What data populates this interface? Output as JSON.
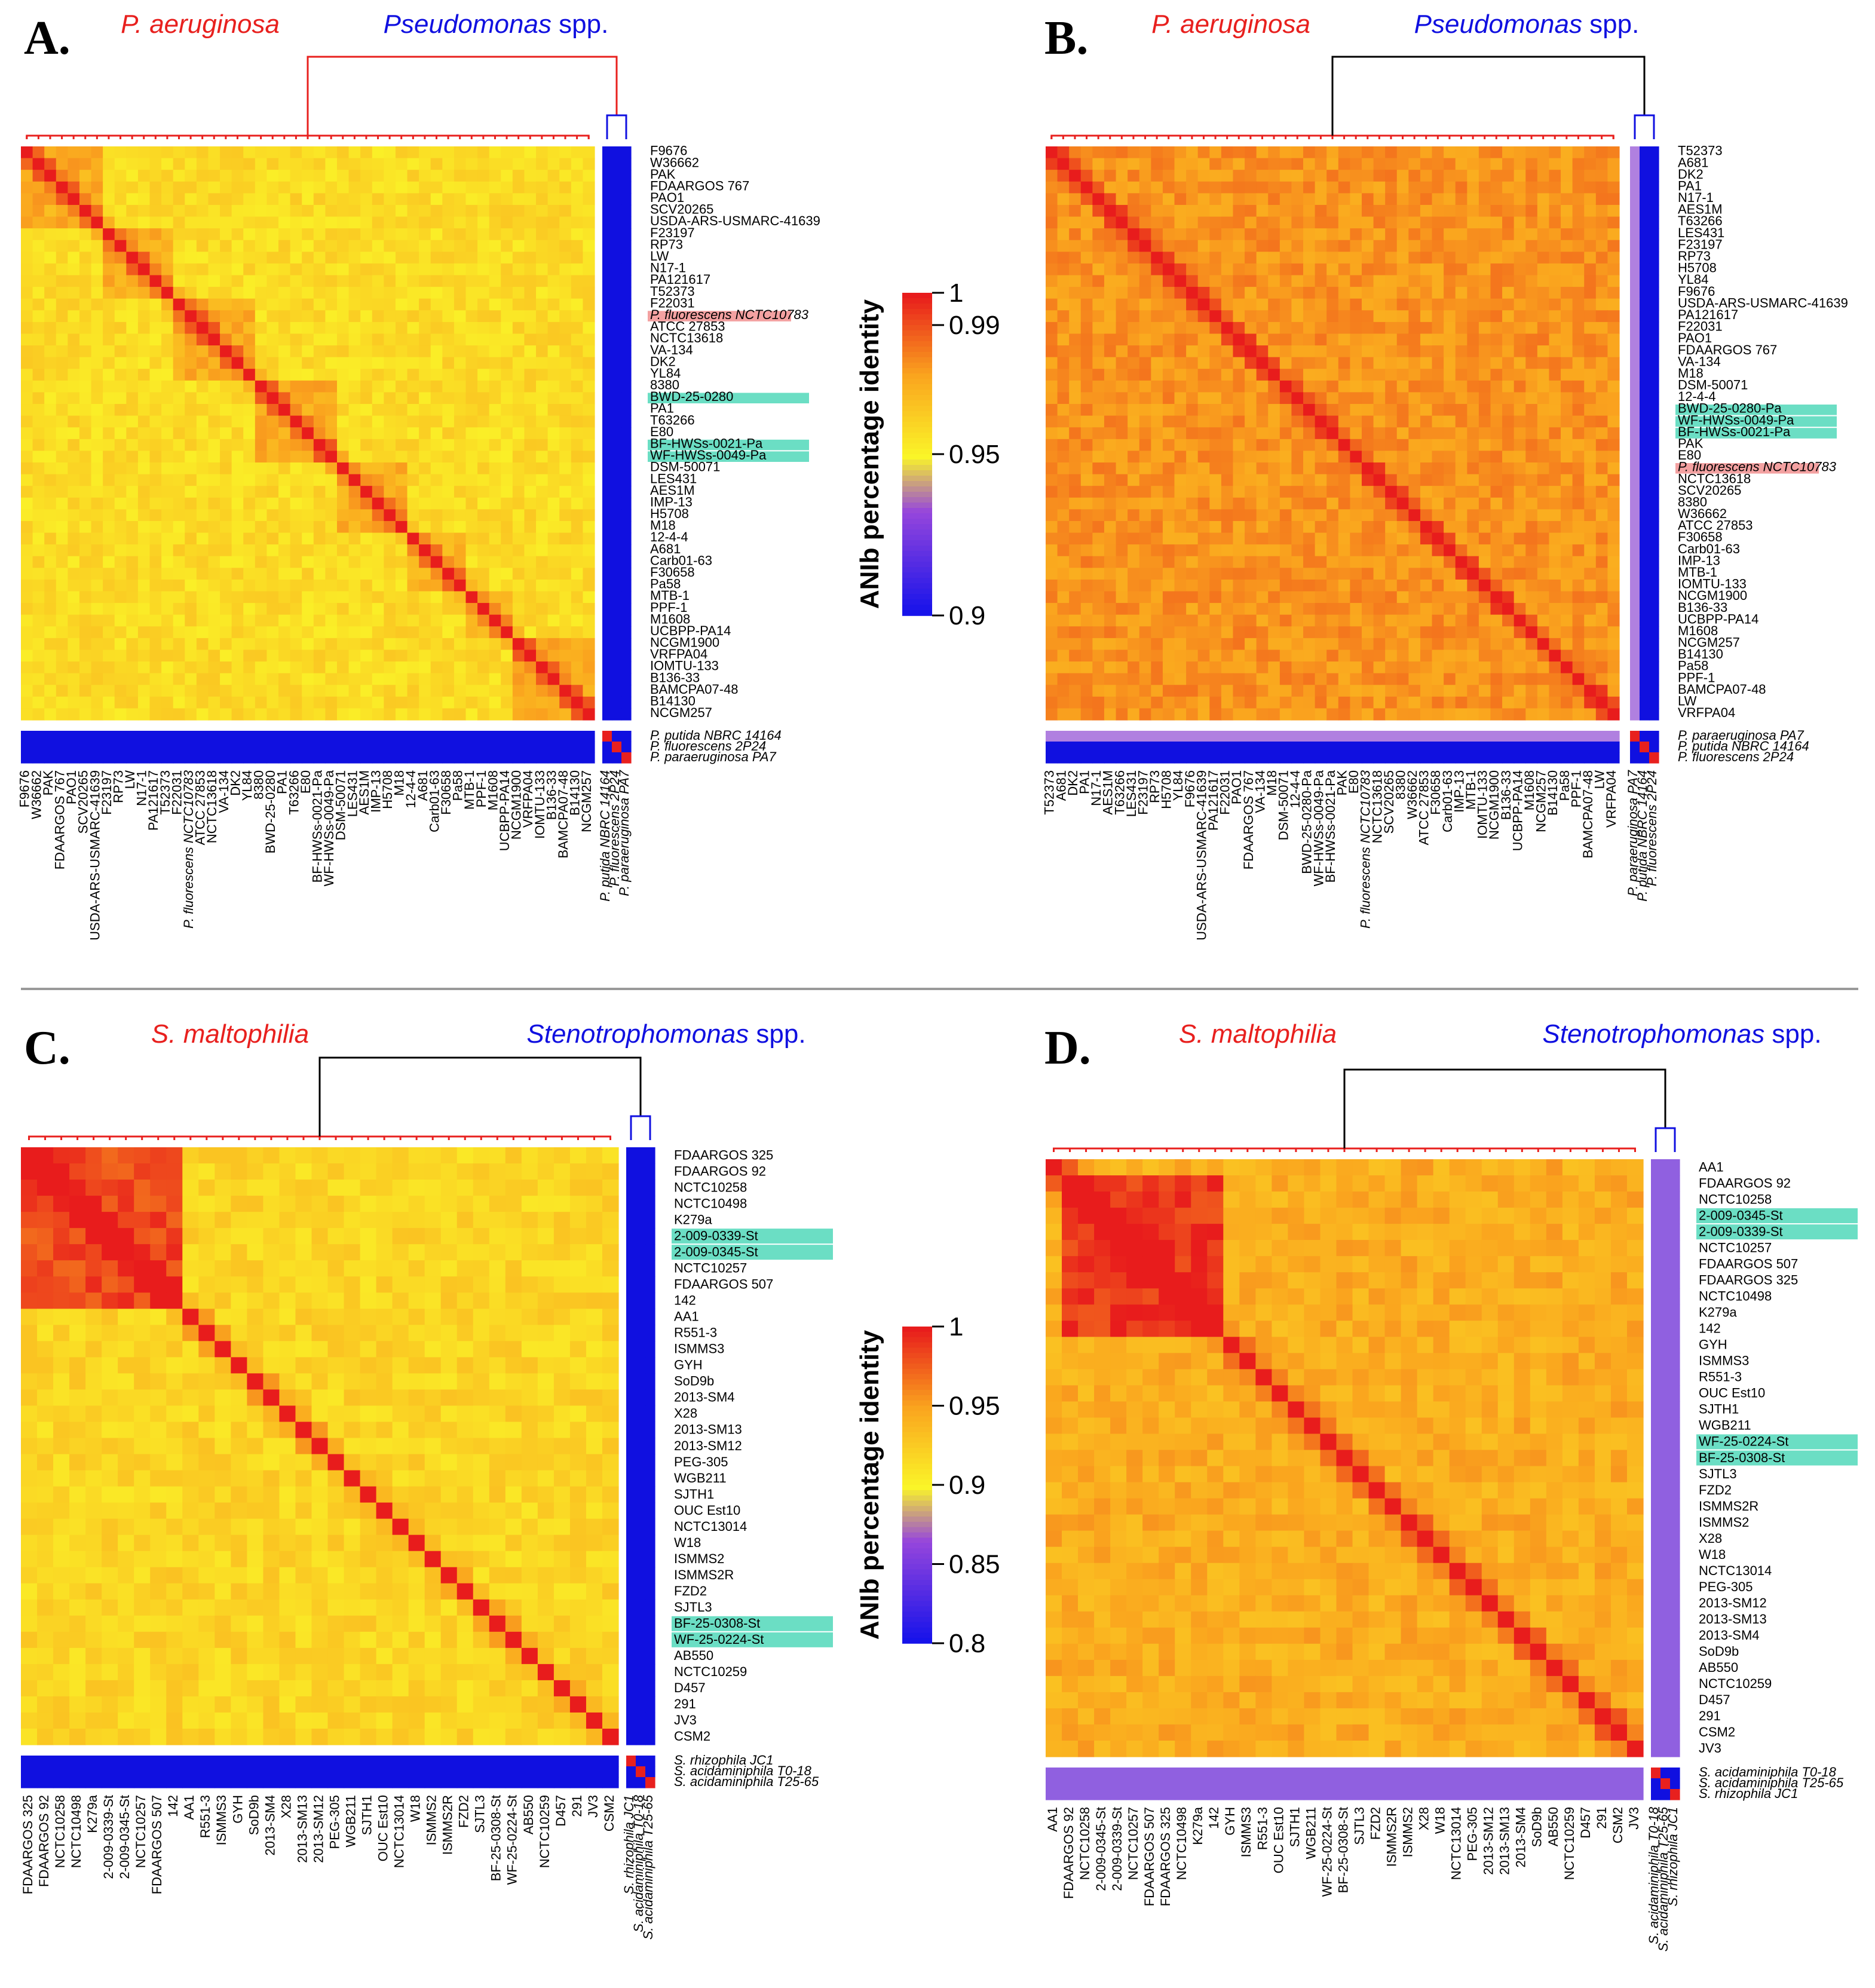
{
  "colors": {
    "red": "#e8201e",
    "blue": "#1010e0",
    "highlight_green": "#3ad3b0",
    "highlight_red": "#f08a8a",
    "black": "#000000"
  },
  "chart_data": [
    {
      "type": "heatmap",
      "panel": "A.",
      "title_left": "P. aeruginosa",
      "title_right": "Pseudomonas",
      "title_right_suffix": " spp.",
      "colorbar_label": "ANIb percentage identity",
      "colorbar_range": [
        0.9,
        1.0
      ],
      "colorbar_ticks": [
        "1",
        "0.99",
        "0.95",
        "0.9"
      ],
      "main_labels": [
        "F9676",
        "W36662",
        "PAK",
        "FDAARGOS 767",
        "PAO1",
        "SCV20265",
        "USDA-ARS-USMARC-41639",
        "F23197",
        "RP73",
        "LW",
        "N17-1",
        "PA121617",
        "T52373",
        "F22031",
        "P. fluorescens NCTC10783",
        "ATCC 27853",
        "NCTC13618",
        "VA-134",
        "DK2",
        "YL84",
        "8380",
        "BWD-25-0280",
        "PA1",
        "T63266",
        "E80",
        "BF-HWSs-0021-Pa",
        "WF-HWSs-0049-Pa",
        "DSM-50071",
        "LES431",
        "AES1M",
        "IMP-13",
        "H5708",
        "M18",
        "12-4-4",
        "A681",
        "Carb01-63",
        "F30658",
        "Pa58",
        "MTB-1",
        "PPF-1",
        "M1608",
        "UCBPP-PA14",
        "NCGM1900",
        "VRFPA04",
        "IOMTU-133",
        "B136-33",
        "BAMCPA07-48",
        "B14130",
        "NCGM257"
      ],
      "side_labels": [
        "P. putida NBRC 14164",
        "P. fluorescens 2P24",
        "P. paraeruginosa PA7"
      ],
      "highlighted_green": [
        "BWD-25-0280",
        "BF-HWSs-0021-Pa",
        "WF-HWSs-0049-Pa"
      ],
      "highlighted_red": [
        "P. fluorescens NCTC10783"
      ]
    },
    {
      "type": "heatmap",
      "panel": "B.",
      "title_left": "P. aeruginosa",
      "title_right": "Pseudomonas",
      "title_right_suffix": " spp.",
      "main_labels": [
        "T52373",
        "A681",
        "DK2",
        "PA1",
        "N17-1",
        "AES1M",
        "T63266",
        "LES431",
        "F23197",
        "RP73",
        "H5708",
        "YL84",
        "F9676",
        "USDA-ARS-USMARC-41639",
        "PA121617",
        "F22031",
        "PAO1",
        "FDAARGOS 767",
        "VA-134",
        "M18",
        "DSM-50071",
        "12-4-4",
        "BWD-25-0280-Pa",
        "WF-HWSs-0049-Pa",
        "BF-HWSs-0021-Pa",
        "PAK",
        "E80",
        "P. fluorescens NCTC10783",
        "NCTC13618",
        "SCV20265",
        "8380",
        "W36662",
        "ATCC 27853",
        "F30658",
        "Carb01-63",
        "IMP-13",
        "MTB-1",
        "IOMTU-133",
        "NCGM1900",
        "B136-33",
        "UCBPP-PA14",
        "M1608",
        "NCGM257",
        "B14130",
        "Pa58",
        "PPF-1",
        "BAMCPA07-48",
        "LW",
        "VRFPA04"
      ],
      "side_labels": [
        "P. paraeruginosa PA7",
        "P. putida NBRC 14164",
        "P. fluorescens 2P24"
      ],
      "highlighted_green": [
        "BWD-25-0280-Pa",
        "WF-HWSs-0049-Pa",
        "BF-HWSs-0021-Pa"
      ],
      "highlighted_red": [
        "P. fluorescens NCTC10783"
      ]
    },
    {
      "type": "heatmap",
      "panel": "C.",
      "title_left": "S. maltophilia",
      "title_right": "Stenotrophomonas",
      "title_right_suffix": " spp.",
      "colorbar_label": "ANIb percentage identity",
      "colorbar_range": [
        0.8,
        1.0
      ],
      "colorbar_ticks": [
        "1",
        "0.95",
        "0.9",
        "0.85",
        "0.8"
      ],
      "main_labels": [
        "FDAARGOS 325",
        "FDAARGOS 92",
        "NCTC10258",
        "NCTC10498",
        "K279a",
        "2-009-0339-St",
        "2-009-0345-St",
        "NCTC10257",
        "FDAARGOS 507",
        "142",
        "AA1",
        "R551-3",
        "ISMMS3",
        "GYH",
        "SoD9b",
        "2013-SM4",
        "X28",
        "2013-SM13",
        "2013-SM12",
        "PEG-305",
        "WGB211",
        "SJTH1",
        "OUC Est10",
        "NCTC13014",
        "W18",
        "ISMMS2",
        "ISMMS2R",
        "FZD2",
        "SJTL3",
        "BF-25-0308-St",
        "WF-25-0224-St",
        "AB550",
        "NCTC10259",
        "D457",
        "291",
        "JV3",
        "CSM2"
      ],
      "side_labels": [
        "S. rhizophila JC1",
        "S. acidaminiphila T0-18",
        "S. acidaminiphila T25-65"
      ],
      "highlighted_green": [
        "2-009-0339-St",
        "2-009-0345-St",
        "BF-25-0308-St",
        "WF-25-0224-St"
      ],
      "highlighted_red": []
    },
    {
      "type": "heatmap",
      "panel": "D.",
      "title_left": "S. maltophilia",
      "title_right": "Stenotrophomonas",
      "title_right_suffix": " spp.",
      "main_labels": [
        "AA1",
        "FDAARGOS 92",
        "NCTC10258",
        "2-009-0345-St",
        "2-009-0339-St",
        "NCTC10257",
        "FDAARGOS 507",
        "FDAARGOS 325",
        "NCTC10498",
        "K279a",
        "142",
        "GYH",
        "ISMMS3",
        "R551-3",
        "OUC Est10",
        "SJTH1",
        "WGB211",
        "WF-25-0224-St",
        "BF-25-0308-St",
        "SJTL3",
        "FZD2",
        "ISMMS2R",
        "ISMMS2",
        "X28",
        "W18",
        "NCTC13014",
        "PEG-305",
        "2013-SM12",
        "2013-SM13",
        "2013-SM4",
        "SoD9b",
        "AB550",
        "NCTC10259",
        "D457",
        "291",
        "CSM2",
        "JV3"
      ],
      "side_labels": [
        "S. acidaminiphila T0-18",
        "S. acidaminiphila T25-65",
        "S. rhizophila JC1"
      ],
      "highlighted_green": [
        "2-009-0345-St",
        "2-009-0339-St",
        "WF-25-0224-St",
        "BF-25-0308-St"
      ],
      "highlighted_red": []
    }
  ]
}
